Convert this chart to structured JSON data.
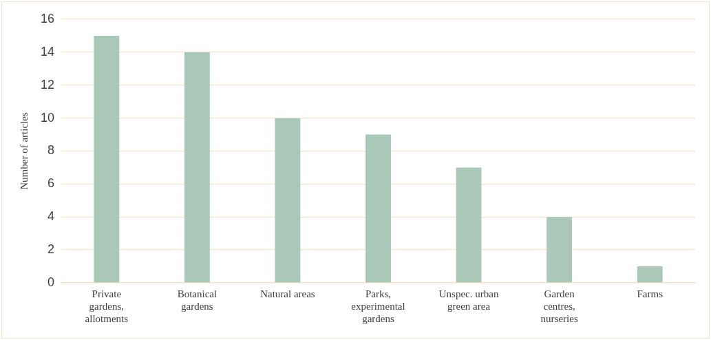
{
  "chart_data": {
    "type": "bar",
    "ylabel": "Number of articles",
    "categories": [
      "Private gardens, allotments",
      "Botanical gardens",
      "Natural areas",
      "Parks, experimental gardens",
      "Unspec. urban green area",
      "Garden centres, nurseries",
      "Farms"
    ],
    "values": [
      15,
      14,
      10,
      9,
      7,
      4,
      1
    ],
    "color": "#a9c8b8",
    "ylim": [
      0,
      16
    ],
    "yticks": [
      0,
      2,
      4,
      6,
      8,
      10,
      12,
      14,
      16
    ],
    "grid": "y",
    "legend": false
  }
}
